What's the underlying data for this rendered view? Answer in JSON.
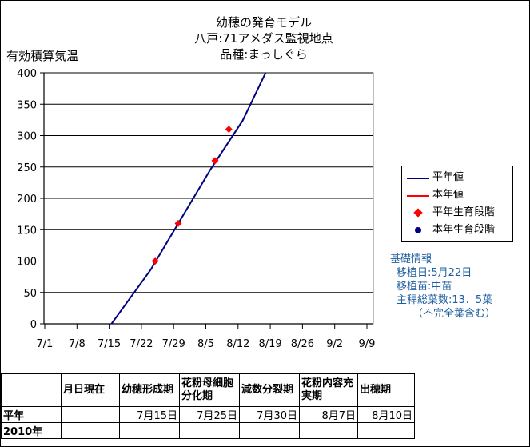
{
  "title_lines": [
    "幼穂の発育モデル",
    "八戸:71アメダス監視地点",
    "品種:まっしぐら"
  ],
  "chart_data": {
    "type": "line",
    "ylabel": "有効積算気温",
    "ylim": [
      0,
      400
    ],
    "yticks": [
      0,
      50,
      100,
      150,
      200,
      250,
      300,
      350,
      400
    ],
    "x_start_date": "7/1",
    "xticks": [
      "7/1",
      "7/8",
      "7/15",
      "7/22",
      "7/29",
      "8/5",
      "8/12",
      "8/19",
      "8/26",
      "9/2",
      "9/9"
    ],
    "grid": "horizontal",
    "legend_position": "right",
    "series": [
      {
        "name": "平年値",
        "kind": "line",
        "color": "#000080",
        "points": [
          [
            "7/15",
            -5
          ],
          [
            "7/24",
            86
          ],
          [
            "8/6",
            246
          ],
          [
            "8/13",
            324
          ],
          [
            "8/18",
            400
          ]
        ]
      },
      {
        "name": "本年値",
        "kind": "line",
        "color": "#ff0000",
        "points": []
      },
      {
        "name": "平年生育段階",
        "kind": "marker",
        "color": "#ff0000",
        "points": [
          [
            "7/25",
            100
          ],
          [
            "7/30",
            160
          ],
          [
            "8/7",
            260
          ],
          [
            "8/10",
            310
          ]
        ]
      },
      {
        "name": "本年生育段階",
        "kind": "marker",
        "color": "#000080",
        "points": []
      }
    ]
  },
  "info": {
    "heading": "基礎情報",
    "lines": [
      "移植日:5月22日",
      "移植苗:中苗",
      "主稈総葉数:13．5葉",
      "（不完全葉含む）"
    ]
  },
  "table": {
    "headers": [
      "",
      "月日現在",
      "幼穂形成期",
      "花粉母細胞分化期",
      "減数分裂期",
      "花粉内容充実期",
      "出穂期"
    ],
    "rows": [
      {
        "label": "平年",
        "cells": [
          "",
          "7月15日",
          "7月25日",
          "7月30日",
          "8月7日",
          "8月10日"
        ]
      },
      {
        "label": "2010年",
        "cells": [
          "",
          "",
          "",
          "",
          "",
          ""
        ]
      }
    ]
  }
}
